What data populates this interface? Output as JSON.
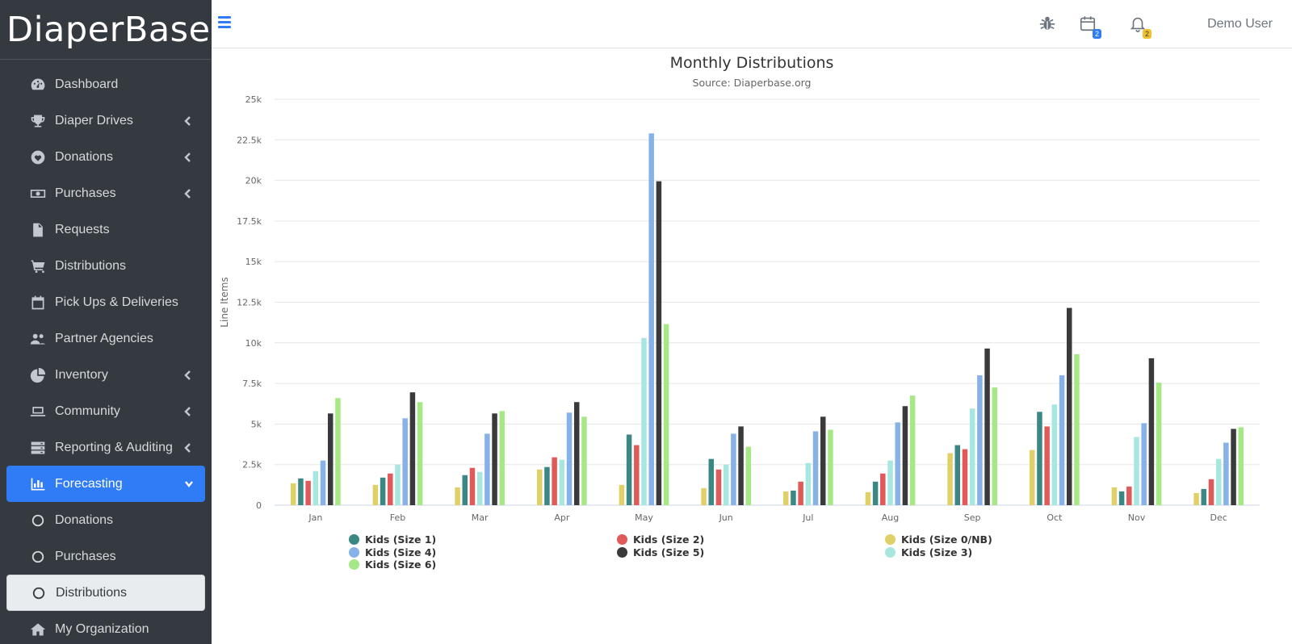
{
  "brand": {
    "name": "DiaperBase"
  },
  "sidebar": {
    "items": [
      {
        "label": "Dashboard",
        "icon": "dashboard-icon",
        "chevron": false
      },
      {
        "label": "Diaper Drives",
        "icon": "trophy-icon",
        "chevron": true
      },
      {
        "label": "Donations",
        "icon": "heart-icon",
        "chevron": true
      },
      {
        "label": "Purchases",
        "icon": "money-icon",
        "chevron": true
      },
      {
        "label": "Requests",
        "icon": "file-icon",
        "chevron": false
      },
      {
        "label": "Distributions",
        "icon": "cart-icon",
        "chevron": false
      },
      {
        "label": "Pick Ups & Deliveries",
        "icon": "calendar-icon",
        "chevron": false
      },
      {
        "label": "Partner Agencies",
        "icon": "users-icon",
        "chevron": false
      },
      {
        "label": "Inventory",
        "icon": "pie-icon",
        "chevron": true
      },
      {
        "label": "Community",
        "icon": "laptop-icon",
        "chevron": true
      },
      {
        "label": "Reporting & Auditing",
        "icon": "server-icon",
        "chevron": true
      },
      {
        "label": "Forecasting",
        "icon": "bar-chart-icon",
        "chevron": true,
        "active": true
      },
      {
        "label": "Donations",
        "icon": "circle-icon",
        "sub": true
      },
      {
        "label": "Purchases",
        "icon": "circle-icon",
        "sub": true
      },
      {
        "label": "Distributions",
        "icon": "circle-icon",
        "sub": true,
        "selected": true
      },
      {
        "label": "My Organization",
        "icon": "home-icon",
        "chevron": false
      }
    ]
  },
  "topbar": {
    "bug_icon": "bug-icon",
    "calendar_badge": "2",
    "bell_badge": "2",
    "user_name": "Demo User"
  },
  "colors": {
    "accent": "#2f7cf6",
    "sidebar_bg": "#343a40"
  },
  "chart_data": {
    "type": "bar",
    "title": "Monthly Distributions",
    "subtitle": "Source: Diaperbase.org",
    "xlabel": "",
    "ylabel": "Line Items",
    "ylim": [
      0,
      25000
    ],
    "yticks": [
      "0",
      "2.5k",
      "5k",
      "7.5k",
      "10k",
      "12.5k",
      "15k",
      "17.5k",
      "20k",
      "22.5k",
      "25k"
    ],
    "grid": true,
    "legend_position": "bottom",
    "categories": [
      "Jan",
      "Feb",
      "Mar",
      "Apr",
      "May",
      "Jun",
      "Jul",
      "Aug",
      "Sep",
      "Oct",
      "Nov",
      "Dec"
    ],
    "series": [
      {
        "name": "Kids (Size 0/NB)",
        "color": "#e0d068",
        "values": [
          1350,
          1250,
          1100,
          2200,
          1250,
          1050,
          850,
          800,
          3200,
          3400,
          1100,
          750
        ]
      },
      {
        "name": "Kids (Size 1)",
        "color": "#3a8784",
        "values": [
          1650,
          1700,
          1850,
          2350,
          4350,
          2850,
          900,
          1450,
          3700,
          5750,
          850,
          1000
        ]
      },
      {
        "name": "Kids (Size 2)",
        "color": "#e05a5a",
        "values": [
          1500,
          1950,
          2300,
          2950,
          3700,
          2200,
          1450,
          1950,
          3450,
          4850,
          1150,
          1600
        ]
      },
      {
        "name": "Kids (Size 3)",
        "color": "#a8e6e0",
        "values": [
          2100,
          2500,
          2050,
          2800,
          10300,
          2500,
          2600,
          2750,
          5950,
          6200,
          4200,
          2850
        ]
      },
      {
        "name": "Kids (Size 4)",
        "color": "#86b2e8",
        "values": [
          2750,
          5350,
          4400,
          5700,
          22900,
          4400,
          4550,
          5100,
          8000,
          8000,
          5050,
          3850
        ]
      },
      {
        "name": "Kids (Size 5)",
        "color": "#3a3a3c",
        "values": [
          5650,
          6950,
          5650,
          6350,
          19950,
          4850,
          5450,
          6100,
          9650,
          12150,
          9050,
          4700
        ]
      },
      {
        "name": "Kids (Size 6)",
        "color": "#a6e886",
        "values": [
          6600,
          6350,
          5800,
          5450,
          11150,
          3600,
          4650,
          6750,
          7250,
          9300,
          7550,
          4800
        ]
      }
    ],
    "legend_order": [
      "Kids (Size 1)",
      "Kids (Size 2)",
      "Kids (Size 0/NB)",
      "Kids (Size 4)",
      "Kids (Size 5)",
      "Kids (Size 3)",
      "Kids (Size 6)"
    ]
  }
}
